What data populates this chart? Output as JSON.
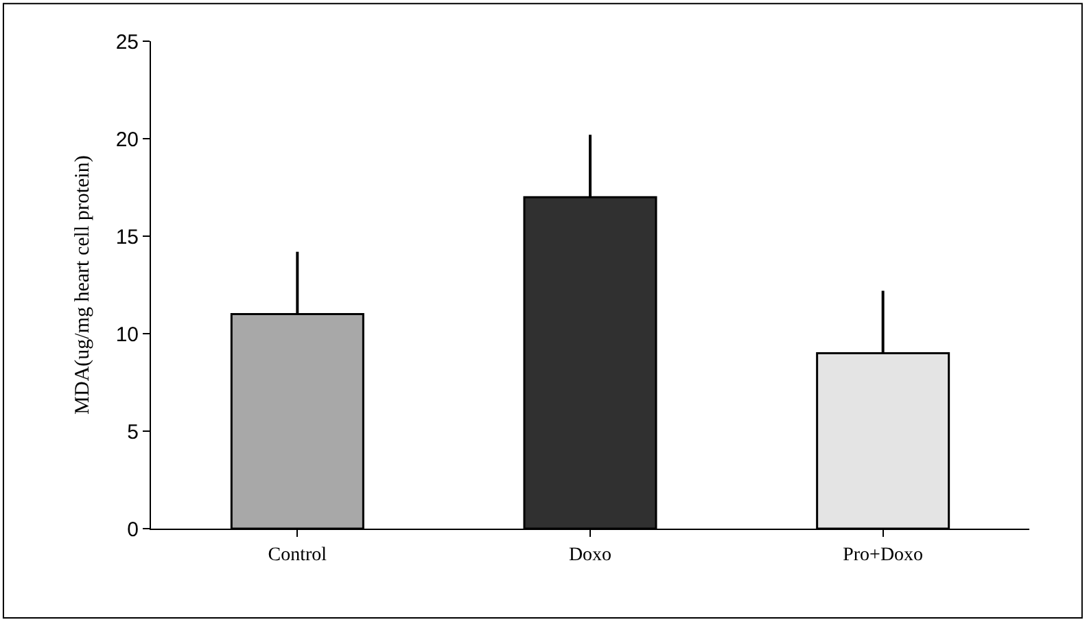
{
  "chart_data": {
    "type": "bar",
    "ylabel": "MDA(ug/mg heart cell protein)",
    "categories": [
      "Control",
      "Doxo",
      "Pro+Doxo"
    ],
    "values": [
      11,
      17,
      9
    ],
    "colors": [
      "#a8a8a8",
      "#303030",
      "#e4e4e4"
    ],
    "errors": [
      [
        11,
        14.2
      ],
      [
        17,
        20.2
      ],
      [
        9,
        12.2
      ]
    ],
    "ylim": [
      0,
      25
    ],
    "yticks": [
      0,
      5,
      10,
      15,
      20,
      25
    ]
  }
}
